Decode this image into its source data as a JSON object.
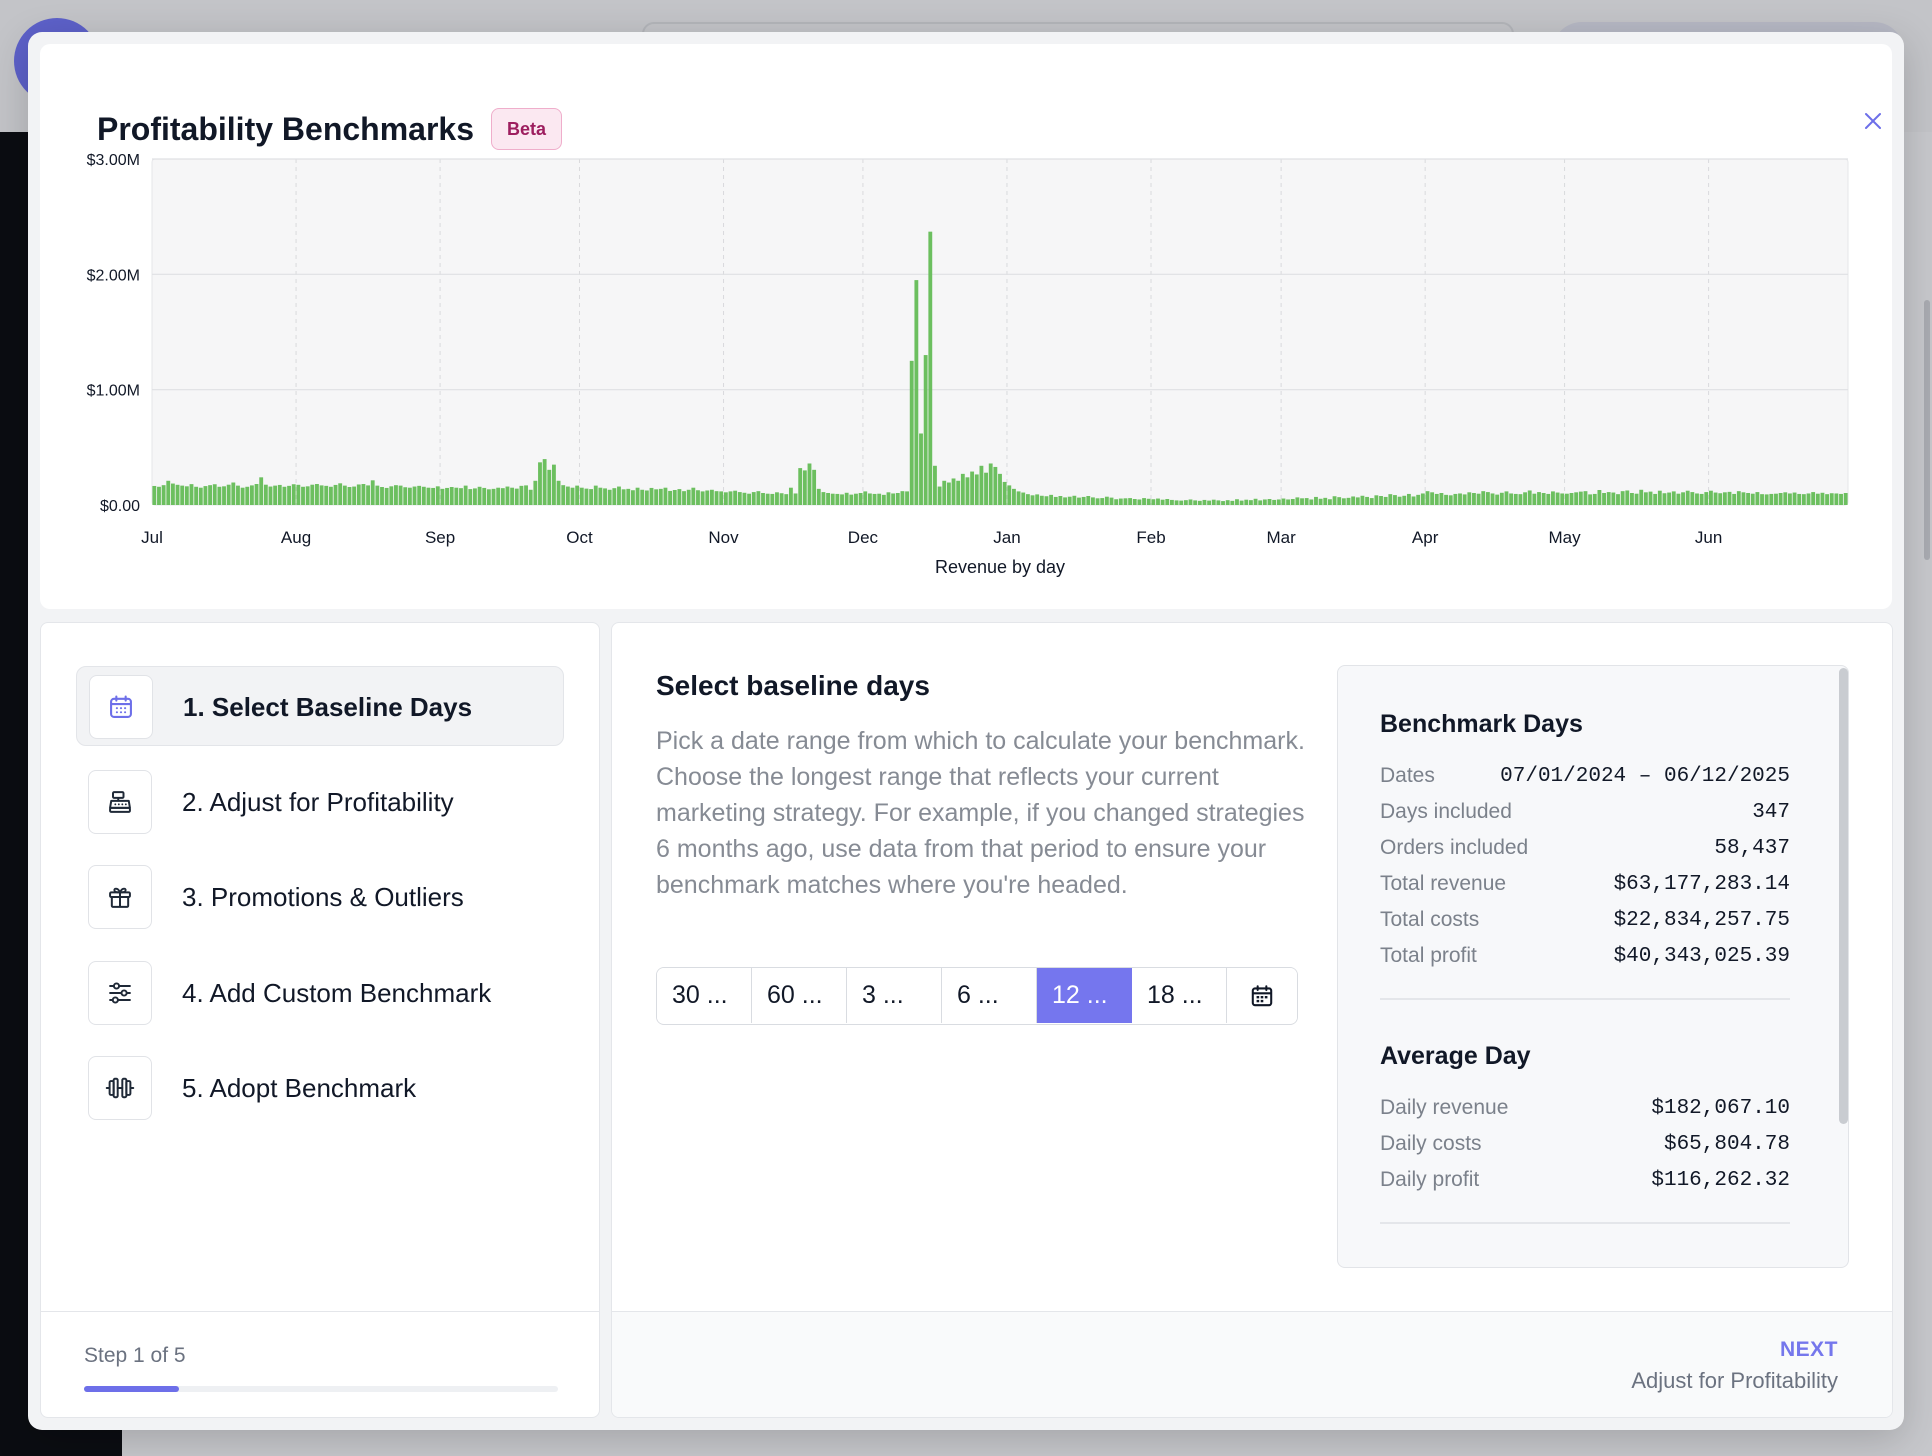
{
  "modal": {
    "title": "Profitability Benchmarks",
    "badge": "Beta",
    "close_icon": "close-icon"
  },
  "chart_data": {
    "type": "bar",
    "xlabel": "Revenue by day",
    "ylabel": "",
    "ylim": [
      0,
      3000000
    ],
    "y_ticks": [
      {
        "value": 0,
        "label": "$0.00"
      },
      {
        "value": 1000000,
        "label": "$1.00M"
      },
      {
        "value": 2000000,
        "label": "$2.00M"
      },
      {
        "value": 3000000,
        "label": "$3.00M"
      }
    ],
    "x_ticks": [
      "Jul",
      "Aug",
      "Sep",
      "Oct",
      "Nov",
      "Dec",
      "Jan",
      "Feb",
      "Mar",
      "Apr",
      "May",
      "Jun"
    ],
    "grid": true,
    "bar_color": "#6cbf5f",
    "series": [
      {
        "segments": [
          {
            "month": "Jul",
            "values": [
              165000,
              158000,
              172000,
              210000,
              186000,
              175000,
              168000,
              162000,
              181000,
              158000,
              150000,
              164000,
              172000,
              180000,
              158000,
              162000,
              176000,
              195000,
              168000,
              150000,
              158000,
              170000,
              182000,
              240000,
              176000,
              160000,
              168000,
              174000,
              158000,
              166000,
              180000
            ]
          },
          {
            "month": "Aug",
            "values": [
              175000,
              158000,
              162000,
              176000,
              182000,
              170000,
              166000,
              158000,
              174000,
              188000,
              168000,
              156000,
              160000,
              178000,
              182000,
              170000,
              214000,
              168000,
              156000,
              148000,
              162000,
              172000,
              168000,
              154000,
              150000,
              160000,
              166000,
              158000,
              150000,
              148000,
              162000
            ]
          },
          {
            "month": "Sep",
            "values": [
              140000,
              148000,
              156000,
              150000,
              146000,
              168000,
              138000,
              144000,
              158000,
              148000,
              136000,
              140000,
              150000,
              146000,
              160000,
              150000,
              142000,
              166000,
              170000,
              132000,
              210000,
              370000,
              398000,
              305000,
              350000,
              210000,
              172000,
              160000,
              150000,
              168000
            ]
          },
          {
            "month": "Oct",
            "values": [
              150000,
              142000,
              138000,
              168000,
              150000,
              144000,
              132000,
              146000,
              160000,
              136000,
              140000,
              128000,
              150000,
              132000,
              126000,
              148000,
              136000,
              140000,
              150000,
              122000,
              130000,
              138000,
              120000,
              132000,
              150000,
              128000,
              118000,
              126000,
              132000,
              120000,
              118000
            ]
          },
          {
            "month": "Nov",
            "values": [
              110000,
              118000,
              124000,
              112000,
              106000,
              98000,
              112000,
              120000,
              104000,
              98000,
              96000,
              110000,
              102000,
              94000,
              150000,
              100000,
              320000,
              300000,
              360000,
              305000,
              140000,
              112000,
              104000,
              98000,
              96000,
              92000,
              106000,
              90000,
              98000,
              104000
            ]
          },
          {
            "month": "Dec",
            "values": [
              118000,
              100000,
              96000,
              98000,
              88000,
              110000,
              100000,
              104000,
              120000,
              118000,
              1250000,
              1950000,
              620000,
              1300000,
              2370000,
              340000,
              160000,
              210000,
              195000,
              230000,
              210000,
              270000,
              240000,
              290000,
              265000,
              340000,
              280000,
              360000,
              330000,
              270000,
              200000
            ]
          },
          {
            "month": "Jan",
            "values": [
              170000,
              140000,
              118000,
              108000,
              94000,
              84000,
              92000,
              80000,
              76000,
              88000,
              70000,
              78000,
              66000,
              72000,
              80000,
              64000,
              70000,
              78000,
              66000,
              58000,
              60000,
              72000,
              64000,
              50000,
              56000,
              58000,
              60000,
              52000,
              48000,
              60000,
              54000
            ]
          },
          {
            "month": "Feb",
            "values": [
              50000,
              56000,
              46000,
              52000,
              44000,
              40000,
              38000,
              42000,
              48000,
              40000,
              36000,
              44000,
              38000,
              46000,
              40000,
              34000,
              42000,
              36000,
              50000,
              38000,
              46000,
              42000,
              54000,
              40000,
              48000,
              52000,
              44000,
              48000
            ]
          },
          {
            "month": "Mar",
            "values": [
              56000,
              48000,
              52000,
              66000,
              58000,
              60000,
              48000,
              70000,
              54000,
              62000,
              50000,
              76000,
              68000,
              58000,
              62000,
              74000,
              66000,
              80000,
              70000,
              60000,
              84000,
              78000,
              70000,
              94000,
              86000,
              72000,
              80000,
              96000,
              74000,
              88000,
              100000
            ]
          },
          {
            "month": "Apr",
            "values": [
              120000,
              110000,
              96000,
              104000,
              88000,
              84000,
              96000,
              100000,
              92000,
              110000,
              104000,
              98000,
              120000,
              112000,
              100000,
              90000,
              106000,
              118000,
              100000,
              96000,
              94000,
              110000,
              126000,
              98000,
              112000,
              104000,
              96000,
              118000,
              108000,
              100000
            ]
          },
          {
            "month": "May",
            "values": [
              98000,
              104000,
              110000,
              116000,
              120000,
              92000,
              96000,
              130000,
              104000,
              112000,
              108000,
              94000,
              120000,
              126000,
              104000,
              98000,
              132000,
              110000,
              116000,
              96000,
              124000,
              102000,
              108000,
              118000,
              98000,
              110000,
              124000,
              112000,
              100000,
              96000,
              112000
            ]
          },
          {
            "month": "Jun",
            "values": [
              124000,
              108000,
              102000,
              110000,
              114000,
              96000,
              120000,
              110000,
              104000,
              98000,
              112000,
              94000,
              92000,
              96000,
              98000,
              104000,
              110000,
              100000,
              108000,
              96000,
              94000,
              100000,
              112000,
              98000,
              106000,
              94000,
              102000,
              100000,
              96000,
              104000
            ]
          }
        ]
      }
    ]
  },
  "steps": {
    "items": [
      {
        "label": "1. Select Baseline Days",
        "icon": "calendar-icon"
      },
      {
        "label": "2. Adjust for Profitability",
        "icon": "cash-register-icon"
      },
      {
        "label": "3. Promotions & Outliers",
        "icon": "gift-icon"
      },
      {
        "label": "4. Add Custom Benchmark",
        "icon": "sliders-icon"
      },
      {
        "label": "5. Adopt Benchmark",
        "icon": "dumbbell-icon"
      }
    ],
    "footer": "Step 1 of 5",
    "progress_fraction": 0.2,
    "accent_color": "#6d6fe9"
  },
  "main": {
    "title": "Select baseline days",
    "description": "Pick a date range from which to calculate your benchmark. Choose the longest range that reflects your current marketing strategy. For example, if you changed strategies 6 months ago, use data from that period to ensure your benchmark matches where you're headed.",
    "range_options": [
      "30 ...",
      "60 ...",
      "3 ...",
      "6 ...",
      "12 ...",
      "18 ..."
    ],
    "selected_range": "12 ...",
    "calendar_icon": "calendar-icon",
    "next_label": "NEXT",
    "next_sub": "Adjust for Profitability"
  },
  "stats": {
    "benchmark": {
      "title": "Benchmark Days",
      "rows": [
        {
          "k": "Dates",
          "v": "07/01/2024 – 06/12/2025"
        },
        {
          "k": "Days included",
          "v": "347"
        },
        {
          "k": "Orders included",
          "v": "58,437"
        },
        {
          "k": "Total revenue",
          "v": "$63,177,283.14"
        },
        {
          "k": "Total costs",
          "v": "$22,834,257.75"
        },
        {
          "k": "Total profit",
          "v": "$40,343,025.39"
        }
      ]
    },
    "average": {
      "title": "Average Day",
      "rows": [
        {
          "k": "Daily revenue",
          "v": "$182,067.10"
        },
        {
          "k": "Daily costs",
          "v": "$65,804.78"
        },
        {
          "k": "Daily profit",
          "v": "$116,262.32"
        }
      ]
    }
  }
}
